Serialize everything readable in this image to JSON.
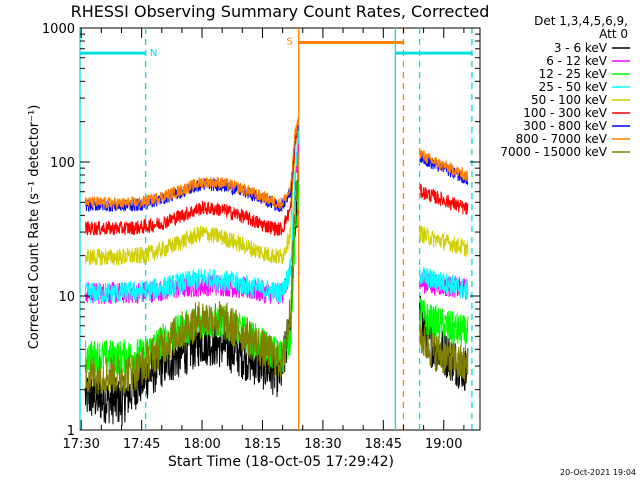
{
  "chart_data": {
    "type": "line",
    "title": "RHESSI Observing Summary Count Rates, Corrected",
    "xlabel": "Start Time (18-Oct-05 17:29:42)",
    "ylabel": "Corrected Count Rate (s⁻¹ detector⁻¹)",
    "y_scale": "log",
    "ylim": [
      1,
      1000
    ],
    "xlim": [
      "17:29:42",
      "19:09:00"
    ],
    "x_ticks": [
      "17:30",
      "17:45",
      "18:00",
      "18:15",
      "18:30",
      "18:45",
      "19:00"
    ],
    "y_ticks": [
      "1",
      "10",
      "100",
      "1000"
    ],
    "grid": false,
    "legend_header": [
      "Det 1,3,4,5,6,9,",
      "Att 0"
    ],
    "legend_position": "top-right",
    "timestamp": "20-Oct-2021 19:04",
    "gap": [
      "18:24",
      "18:54"
    ],
    "markers": [
      {
        "label": "N",
        "type": "night",
        "color": "#00e0e0",
        "level": 650,
        "start": "17:29:42",
        "end": "17:46",
        "edges": [
          "17:29:42",
          "17:46"
        ]
      },
      {
        "label": "S",
        "type": "saa",
        "color": "#ff8000",
        "level": 780,
        "start": "18:24",
        "end": "18:50",
        "edges": [
          "18:24",
          "18:50"
        ]
      },
      {
        "label": "",
        "type": "night",
        "color": "#00e0e0",
        "level": 650,
        "start": "18:48",
        "end": "19:07",
        "edges": [
          "18:48",
          "18:54",
          "19:07"
        ]
      }
    ],
    "series": [
      {
        "name": "3 - 6 keV",
        "color": "#000000",
        "times": [
          "17:31",
          "17:40",
          "17:44",
          "17:47",
          "17:50",
          "17:55",
          "18:00",
          "18:05",
          "18:10",
          "18:15",
          "18:19",
          "18:20",
          "18:22",
          "18:23",
          "18:24",
          "18:54",
          "18:55",
          "18:57",
          "19:00",
          "19:03",
          "19:06"
        ],
        "values": [
          1.8,
          1.6,
          2.2,
          2.6,
          3.1,
          3.7,
          4.6,
          4.3,
          3.6,
          3.0,
          2.6,
          2.8,
          7,
          30,
          60,
          7.2,
          5.6,
          4.4,
          3.8,
          3.2,
          2.8
        ]
      },
      {
        "name": "6 - 12 keV",
        "color": "#ff00ff",
        "times": [
          "17:31",
          "17:40",
          "17:45",
          "17:50",
          "17:55",
          "18:00",
          "18:05",
          "18:10",
          "18:15",
          "18:19",
          "18:20",
          "18:22",
          "18:23",
          "18:24",
          "18:54",
          "18:55",
          "18:57",
          "19:00",
          "19:03",
          "19:06"
        ],
        "values": [
          10.5,
          10.5,
          10.6,
          11,
          11.5,
          12,
          12.1,
          11.4,
          10.7,
          10.4,
          10.6,
          15,
          60,
          150,
          13,
          12.6,
          12.2,
          12,
          11.6,
          11.2
        ]
      },
      {
        "name": "12 - 25 keV",
        "color": "#00ff00",
        "times": [
          "17:31",
          "17:40",
          "17:45",
          "17:50",
          "17:55",
          "18:00",
          "18:05",
          "18:10",
          "18:15",
          "18:19",
          "18:20",
          "18:22",
          "18:23",
          "18:24",
          "18:54",
          "18:55",
          "18:57",
          "19:00",
          "19:03",
          "19:06"
        ],
        "values": [
          3.5,
          3.5,
          3.6,
          4.6,
          5.6,
          6.6,
          6.4,
          5.4,
          4.3,
          3.6,
          3.6,
          5,
          25,
          70,
          7.8,
          7,
          6.4,
          6,
          5.6,
          5.2
        ]
      },
      {
        "name": "25 - 50 keV",
        "color": "#00ffff",
        "times": [
          "17:31",
          "17:40",
          "17:45",
          "17:50",
          "17:55",
          "18:00",
          "18:05",
          "18:10",
          "18:15",
          "18:19",
          "18:20",
          "18:22",
          "18:23",
          "18:24",
          "18:54",
          "18:55",
          "18:57",
          "19:00",
          "19:03",
          "19:06"
        ],
        "values": [
          10.6,
          10.6,
          10.8,
          11.5,
          12.5,
          13.5,
          13.1,
          12.2,
          11.2,
          10.6,
          10.8,
          16,
          70,
          170,
          14.8,
          14,
          13.2,
          12.6,
          11.8,
          11
        ]
      },
      {
        "name": "50 - 100 keV",
        "color": "#d0d000",
        "times": [
          "17:31",
          "17:40",
          "17:45",
          "17:50",
          "17:55",
          "18:00",
          "18:05",
          "18:10",
          "18:15",
          "18:19",
          "18:20",
          "18:22",
          "18:23",
          "18:24",
          "18:54",
          "18:55",
          "18:57",
          "19:00",
          "19:03",
          "19:06"
        ],
        "values": [
          19.5,
          19.5,
          20,
          22,
          25.5,
          29.5,
          27.5,
          24,
          21,
          19.5,
          19.8,
          30,
          110,
          220,
          30,
          28.5,
          27,
          25.5,
          24,
          22.5
        ]
      },
      {
        "name": "100 - 300 keV",
        "color": "#ff0000",
        "times": [
          "17:31",
          "17:40",
          "17:45",
          "17:50",
          "17:55",
          "18:00",
          "18:05",
          "18:10",
          "18:15",
          "18:19",
          "18:20",
          "18:22",
          "18:23",
          "18:24",
          "18:54",
          "18:55",
          "18:57",
          "19:00",
          "19:03",
          "19:06"
        ],
        "values": [
          32,
          32,
          32.5,
          35,
          40,
          45.5,
          44,
          39.5,
          34,
          31.5,
          32,
          45,
          130,
          200,
          61,
          59,
          56,
          52,
          48,
          44
        ]
      },
      {
        "name": "300 - 800 keV",
        "color": "#0000ff",
        "times": [
          "17:31",
          "17:40",
          "17:45",
          "17:50",
          "17:55",
          "18:00",
          "18:05",
          "18:10",
          "18:15",
          "18:19",
          "18:20",
          "18:22",
          "18:23",
          "18:24",
          "18:54",
          "18:55",
          "18:57",
          "19:00",
          "19:03",
          "19:06"
        ],
        "values": [
          48,
          47,
          48,
          53,
          60,
          68,
          67,
          61,
          53,
          47,
          48,
          60,
          150,
          200,
          112,
          106,
          98,
          90,
          82,
          74
        ]
      },
      {
        "name": "800 - 7000 keV",
        "color": "#ff8000",
        "times": [
          "17:31",
          "17:40",
          "17:45",
          "17:50",
          "17:55",
          "18:00",
          "18:05",
          "18:10",
          "18:15",
          "18:19",
          "18:20",
          "18:22",
          "18:23",
          "18:24",
          "18:54",
          "18:55",
          "18:57",
          "19:00",
          "19:03",
          "19:06"
        ],
        "values": [
          50,
          49,
          50,
          55,
          62,
          71,
          70,
          63,
          55,
          49,
          50,
          62,
          155,
          210,
          118,
          111,
          102,
          94,
          86,
          78
        ]
      },
      {
        "name": "7000 - 15000 keV",
        "color": "#808000",
        "times": [
          "17:31",
          "17:40",
          "17:44",
          "17:47",
          "17:50",
          "17:55",
          "18:00",
          "18:05",
          "18:10",
          "18:15",
          "18:19",
          "18:20",
          "18:22",
          "18:23",
          "18:24",
          "18:54",
          "18:55",
          "18:57",
          "19:00",
          "19:03",
          "19:06"
        ],
        "values": [
          2.6,
          2.6,
          2.8,
          3.4,
          4.2,
          5.5,
          6.8,
          6.6,
          5.3,
          4.0,
          3.3,
          3.3,
          8,
          40,
          90,
          5.4,
          4.6,
          4.0,
          3.6,
          3.2,
          2.9
        ]
      }
    ]
  }
}
